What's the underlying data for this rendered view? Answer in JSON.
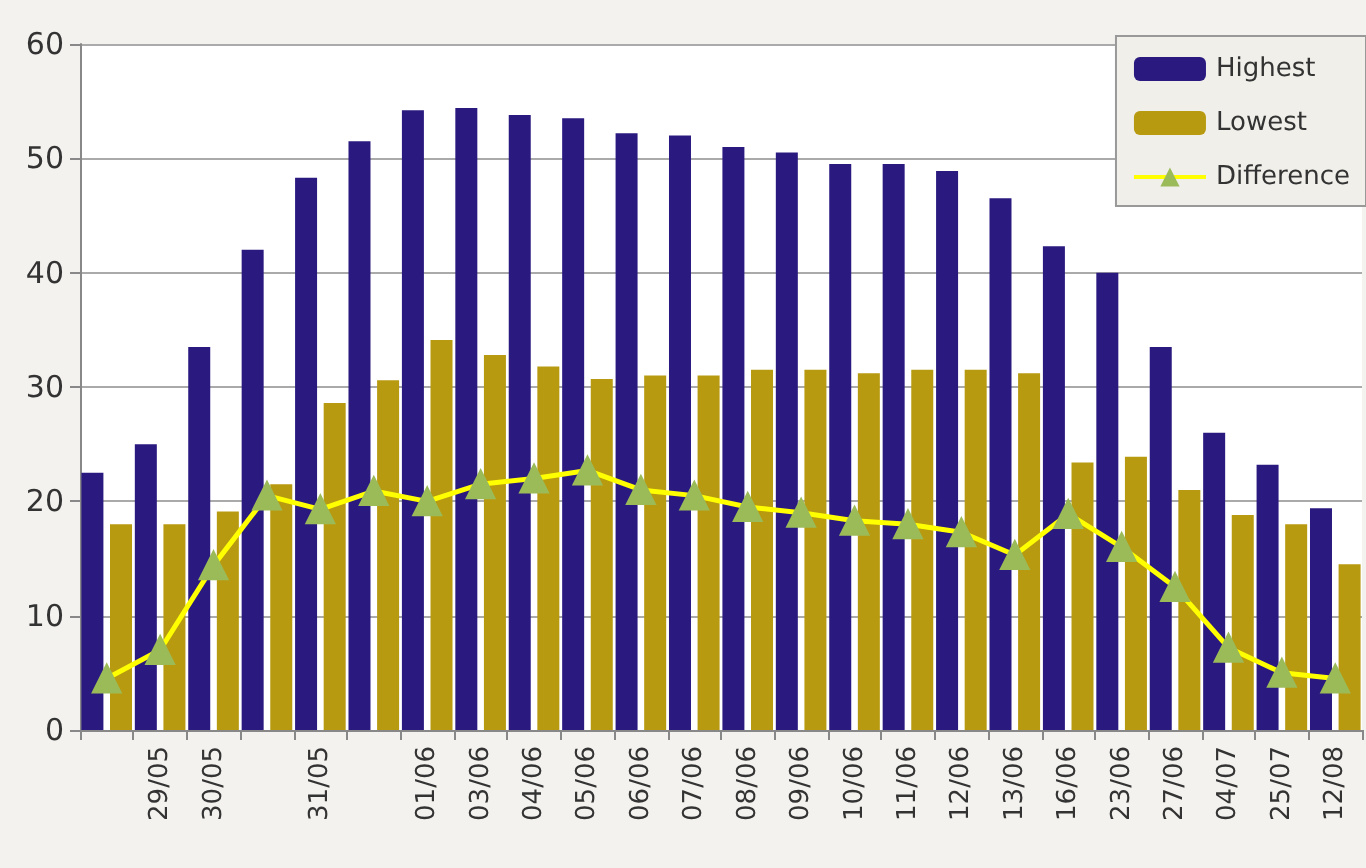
{
  "chart_data": {
    "type": "bar",
    "categories": [
      null,
      "29/05",
      "30/05",
      null,
      "31/05",
      null,
      "01/06",
      "03/06",
      "04/06",
      "05/06",
      "06/06",
      "07/06",
      "08/06",
      "09/06",
      "10/06",
      "11/06",
      "12/06",
      "13/06",
      "16/06",
      "23/06",
      "27/06",
      "04/07",
      "25/07",
      "12/08"
    ],
    "series": [
      {
        "name": "Highest",
        "color": "#2a1a80",
        "values": [
          22.5,
          25,
          33.5,
          42,
          48.3,
          51.5,
          54.2,
          54.4,
          53.8,
          53.5,
          52.2,
          52,
          51,
          50.5,
          49.5,
          49.5,
          48.9,
          46.5,
          42.3,
          40,
          33.5,
          26,
          23.2,
          19.4
        ]
      },
      {
        "name": "Lowest",
        "color": "#b89a10",
        "values": [
          18,
          18,
          19.1,
          21.5,
          28.6,
          30.6,
          34.1,
          32.8,
          31.8,
          30.7,
          31,
          31,
          31.5,
          31.5,
          31.2,
          31.5,
          31.5,
          31.2,
          23.4,
          23.9,
          21,
          18.8,
          18,
          14.5
        ]
      },
      {
        "name": "Difference",
        "type": "line",
        "color": "#ffff00",
        "marker": "triangle",
        "values": [
          4.5,
          7,
          14.4,
          20.5,
          19.3,
          20.9,
          20,
          21.5,
          22,
          22.7,
          21,
          20.5,
          19.5,
          19,
          18.3,
          18,
          17.3,
          15.3,
          18.9,
          16,
          12.5,
          7.2,
          5,
          4.5
        ]
      }
    ],
    "ylim": [
      0,
      60
    ],
    "yticks": [
      0,
      10,
      20,
      30,
      40,
      50,
      60
    ],
    "grid": "y",
    "legend": "top right"
  }
}
